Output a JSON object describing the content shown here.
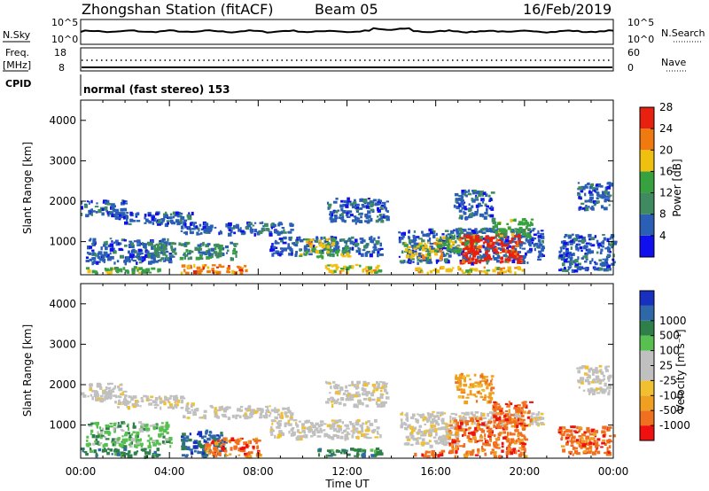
{
  "header": {
    "station": "Zhongshan Station (fitACF)",
    "beam": "Beam 05",
    "date": "16/Feb/2019"
  },
  "summary_panels": {
    "nsky_label": "N.Sky",
    "nsky_ticks": [
      "10^5",
      "10^0"
    ],
    "nsearch_label": "N.Search",
    "nsearch_ticks": [
      "10^5",
      "10^0"
    ],
    "freq_label_top": "Freq.",
    "freq_label_bottom": "[MHz]",
    "freq_ticks": [
      "18",
      "8"
    ],
    "nave_label": "Nave",
    "nave_ticks": [
      "60",
      "0"
    ],
    "cpid_label": "CPID",
    "cpid_text": "normal (fast stereo) 153"
  },
  "colors": {
    "power_scale": [
      "#1010ee",
      "#2a5fb5",
      "#3f8a60",
      "#38a13f",
      "#f0c010",
      "#f07a10",
      "#e82010"
    ],
    "velocity_scale": [
      "#f01010",
      "#f07020",
      "#f0a020",
      "#f0c030",
      "#c0c0c0",
      "#c0c0c0",
      "#58c050",
      "#2f7f4a",
      "#2f68a8",
      "#1830c0"
    ]
  },
  "chart_data": [
    {
      "type": "heatmap",
      "title": "",
      "xlabel": "Time UT",
      "ylabel": "Slant Range [km]",
      "xlim": [
        "00:00",
        "24:00"
      ],
      "ylim": [
        180,
        4500
      ],
      "x_ticks": [
        "00:00",
        "04:00",
        "08:00",
        "12:00",
        "16:00",
        "20:00",
        "00:00"
      ],
      "y_ticks": [
        1000,
        2000,
        3000,
        4000
      ],
      "colorbar_label": "Power [dB]",
      "colorbar_ticks": [
        4,
        8,
        12,
        16,
        20,
        24,
        28
      ],
      "regions": [
        {
          "t0": 0.0,
          "t1": 2.0,
          "r0": 1650,
          "r1": 2050,
          "level": 1
        },
        {
          "t0": 1.5,
          "t1": 5.0,
          "r0": 1450,
          "r1": 1750,
          "level": 1
        },
        {
          "t0": 4.5,
          "t1": 9.5,
          "r0": 1200,
          "r1": 1500,
          "level": 1
        },
        {
          "t0": 0.2,
          "t1": 4.0,
          "r0": 500,
          "r1": 1100,
          "level": 1
        },
        {
          "t0": 3.0,
          "t1": 7.0,
          "r0": 600,
          "r1": 1000,
          "level": 2
        },
        {
          "t0": 4.5,
          "t1": 7.5,
          "r0": 250,
          "r1": 450,
          "level": 5
        },
        {
          "t0": 0.0,
          "t1": 3.5,
          "r0": 250,
          "r1": 400,
          "level": 3
        },
        {
          "t0": 8.5,
          "t1": 13.5,
          "r0": 700,
          "r1": 1150,
          "level": 1
        },
        {
          "t0": 9.8,
          "t1": 12.0,
          "r0": 650,
          "r1": 900,
          "level": 3
        },
        {
          "t0": 10.0,
          "t1": 11.5,
          "r0": 900,
          "r1": 1100,
          "level": 4
        },
        {
          "t0": 11.0,
          "t1": 13.8,
          "r0": 1500,
          "r1": 2100,
          "level": 1
        },
        {
          "t0": 11.0,
          "t1": 13.5,
          "r0": 250,
          "r1": 450,
          "level": 4
        },
        {
          "t0": 14.3,
          "t1": 20.8,
          "r0": 500,
          "r1": 1350,
          "level": 1
        },
        {
          "t0": 14.5,
          "t1": 16.3,
          "r0": 600,
          "r1": 1000,
          "level": 4
        },
        {
          "t0": 16.0,
          "t1": 18.0,
          "r0": 800,
          "r1": 1200,
          "level": 3
        },
        {
          "t0": 17.0,
          "t1": 19.8,
          "r0": 500,
          "r1": 1200,
          "level": 6
        },
        {
          "t0": 18.5,
          "t1": 20.3,
          "r0": 1150,
          "r1": 1600,
          "level": 3
        },
        {
          "t0": 16.8,
          "t1": 18.5,
          "r0": 1600,
          "r1": 2300,
          "level": 1
        },
        {
          "t0": 15.0,
          "t1": 20.0,
          "r0": 250,
          "r1": 400,
          "level": 4
        },
        {
          "t0": 22.3,
          "t1": 23.8,
          "r0": 1800,
          "r1": 2500,
          "level": 1
        },
        {
          "t0": 21.5,
          "t1": 24.0,
          "r0": 300,
          "r1": 1200,
          "level": 1
        }
      ]
    },
    {
      "type": "heatmap",
      "title": "",
      "xlabel": "Time UT",
      "ylabel": "Slant Range [km]",
      "xlim": [
        "00:00",
        "24:00"
      ],
      "ylim": [
        180,
        4500
      ],
      "x_ticks": [
        "00:00",
        "04:00",
        "08:00",
        "12:00",
        "16:00",
        "20:00",
        "00:00"
      ],
      "y_ticks": [
        1000,
        2000,
        3000,
        4000
      ],
      "colorbar_label": "Velocity [m s⁻¹]",
      "colorbar_ticks": [
        1000,
        500,
        100,
        25,
        -25,
        -100,
        -500,
        -1000
      ],
      "regions": [
        {
          "t0": 0.0,
          "t1": 2.0,
          "r0": 1650,
          "r1": 2050,
          "level": 4
        },
        {
          "t0": 1.5,
          "t1": 5.0,
          "r0": 1450,
          "r1": 1750,
          "level": 4
        },
        {
          "t0": 4.5,
          "t1": 9.5,
          "r0": 1200,
          "r1": 1500,
          "level": 4
        },
        {
          "t0": 0.2,
          "t1": 4.0,
          "r0": 500,
          "r1": 1100,
          "level": 6
        },
        {
          "t0": 0.0,
          "t1": 3.5,
          "r0": 250,
          "r1": 450,
          "level": 7
        },
        {
          "t0": 4.5,
          "t1": 6.5,
          "r0": 250,
          "r1": 900,
          "level": 8
        },
        {
          "t0": 5.5,
          "t1": 8.0,
          "r0": 250,
          "r1": 700,
          "level": 1
        },
        {
          "t0": 8.5,
          "t1": 13.5,
          "r0": 700,
          "r1": 1150,
          "level": 4
        },
        {
          "t0": 11.0,
          "t1": 13.8,
          "r0": 1500,
          "r1": 2100,
          "level": 4
        },
        {
          "t0": 10.5,
          "t1": 13.5,
          "r0": 250,
          "r1": 450,
          "level": 7
        },
        {
          "t0": 14.3,
          "t1": 20.8,
          "r0": 1000,
          "r1": 1350,
          "level": 4
        },
        {
          "t0": 14.5,
          "t1": 17.0,
          "r0": 500,
          "r1": 1000,
          "level": 4
        },
        {
          "t0": 16.5,
          "t1": 20.0,
          "r0": 400,
          "r1": 1200,
          "level": 1
        },
        {
          "t0": 18.5,
          "t1": 20.3,
          "r0": 1100,
          "r1": 1600,
          "level": 1
        },
        {
          "t0": 16.8,
          "t1": 18.5,
          "r0": 1600,
          "r1": 2300,
          "level": 2
        },
        {
          "t0": 15.0,
          "t1": 20.0,
          "r0": 250,
          "r1": 400,
          "level": 1
        },
        {
          "t0": 22.3,
          "t1": 23.8,
          "r0": 1800,
          "r1": 2500,
          "level": 4
        },
        {
          "t0": 21.5,
          "t1": 24.0,
          "r0": 300,
          "r1": 1000,
          "level": 1
        }
      ]
    }
  ]
}
